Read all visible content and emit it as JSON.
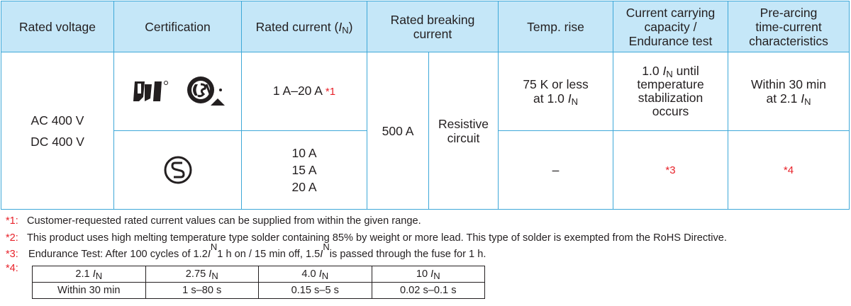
{
  "headers": {
    "rated_voltage": "Rated voltage",
    "certification": "Certification",
    "rated_current": "Rated current (",
    "rated_current_sym": "I",
    "rated_current_sub": "N",
    "rated_current_close": ")",
    "breaking_line1": "Rated breaking",
    "breaking_line2": "current",
    "temp_rise": "Temp. rise",
    "endurance_line1": "Current carrying",
    "endurance_line2": "capacity /",
    "endurance_line3": "Endurance test",
    "prearc_line1": "Pre-arcing",
    "prearc_line2": "time-current",
    "prearc_line3": "characteristics"
  },
  "body": {
    "voltage_ac": "AC 400 V",
    "voltage_dc": "DC 400 V",
    "row1_current": "1 A–20 A",
    "row1_current_note": "*1",
    "breaking_value": "500 A",
    "breaking_type_line1": "Resistive",
    "breaking_type_line2": "circuit",
    "temp_line1": "75 K or less",
    "temp_line2_a": "at 1.0 ",
    "endur_line1_a": "1.0 ",
    "endur_line1_b": " until",
    "endur_line2": "temperature",
    "endur_line3": "stabilization",
    "endur_line4": "occurs",
    "prearc_line1": "Within 30 min",
    "prearc_line2_a": "at 2.1 ",
    "row2_current_1": "10 A",
    "row2_current_2": "15 A",
    "row2_current_3": "20 A",
    "row2_temp": "–",
    "row2_endur": "*3",
    "row2_prearc": "*4",
    "sym_I": "I",
    "sym_N": "N"
  },
  "footnotes": {
    "n1_mark": "*1:",
    "n1_text": "Customer-requested rated current values can be supplied from within the given range.",
    "n2_mark": "*2:",
    "n2_text": "This product uses high melting temperature type solder containing 85% by weight or more lead. This type of solder is exempted from the RoHS Directive.",
    "n3_mark": "*3:",
    "n3_a": "Endurance Test: After 100 cycles of 1.2 ",
    "n3_b": " 1 h on / 15 min off, 1.5 ",
    "n3_c": " is passed through the fuse for 1 h.",
    "n4_mark": "*4:"
  },
  "prearc_table": {
    "multipliers": [
      "2.1 ",
      "2.75 ",
      "4.0 ",
      "10 "
    ],
    "times": [
      "Within 30 min",
      "1 s–80 s",
      "0.15 s–5 s",
      "0.02 s–0.1 s"
    ]
  },
  "icons": {
    "ul_mark": "ul-recognized-mark-icon",
    "csa_mark": "csa-certification-mark-icon",
    "s_mark": "jet-s-mark-icon"
  },
  "colors": {
    "border": "#3ea8d8",
    "header_bg": "#c5e7f8",
    "note_red": "#e8222a"
  }
}
